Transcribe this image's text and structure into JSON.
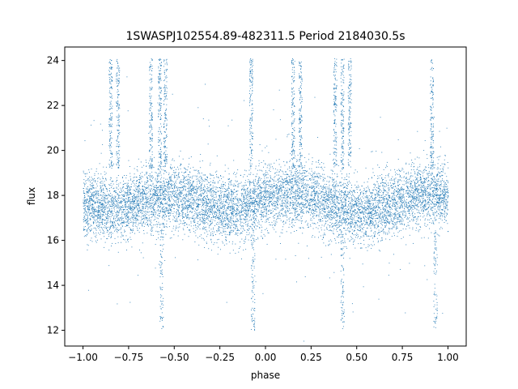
{
  "chart_data": {
    "type": "scatter",
    "title": "1SWASPJ102554.89-482311.5 Period 2184030.5s",
    "xlabel": "phase",
    "ylabel": "flux",
    "xlim": [
      -1.1,
      1.1
    ],
    "ylim": [
      11.3,
      24.6
    ],
    "xticks": [
      -1.0,
      -0.75,
      -0.5,
      -0.25,
      0.0,
      0.25,
      0.5,
      0.75,
      1.0
    ],
    "xtick_labels": [
      "−1.00",
      "−0.75",
      "−0.50",
      "−0.25",
      "0.00",
      "0.25",
      "0.50",
      "0.75",
      "1.00"
    ],
    "yticks": [
      12,
      14,
      16,
      18,
      20,
      22,
      24
    ],
    "ytick_labels": [
      "12",
      "14",
      "16",
      "18",
      "20",
      "22",
      "24"
    ],
    "grid": false,
    "color": "#1f77b4",
    "series": [
      {
        "x_range": [
          -1.0,
          1.0
        ],
        "core_center": 17.9,
        "core_low": 16.6,
        "core_high": 19.2,
        "spikes_up_to_24": [
          -0.85,
          -0.81,
          -0.63,
          -0.58,
          -0.55,
          -0.08,
          0.15,
          0.19,
          0.38,
          0.42,
          0.46,
          0.91
        ],
        "dips_down_to_12": [
          -0.57,
          -0.07,
          0.42,
          0.93
        ]
      }
    ]
  }
}
